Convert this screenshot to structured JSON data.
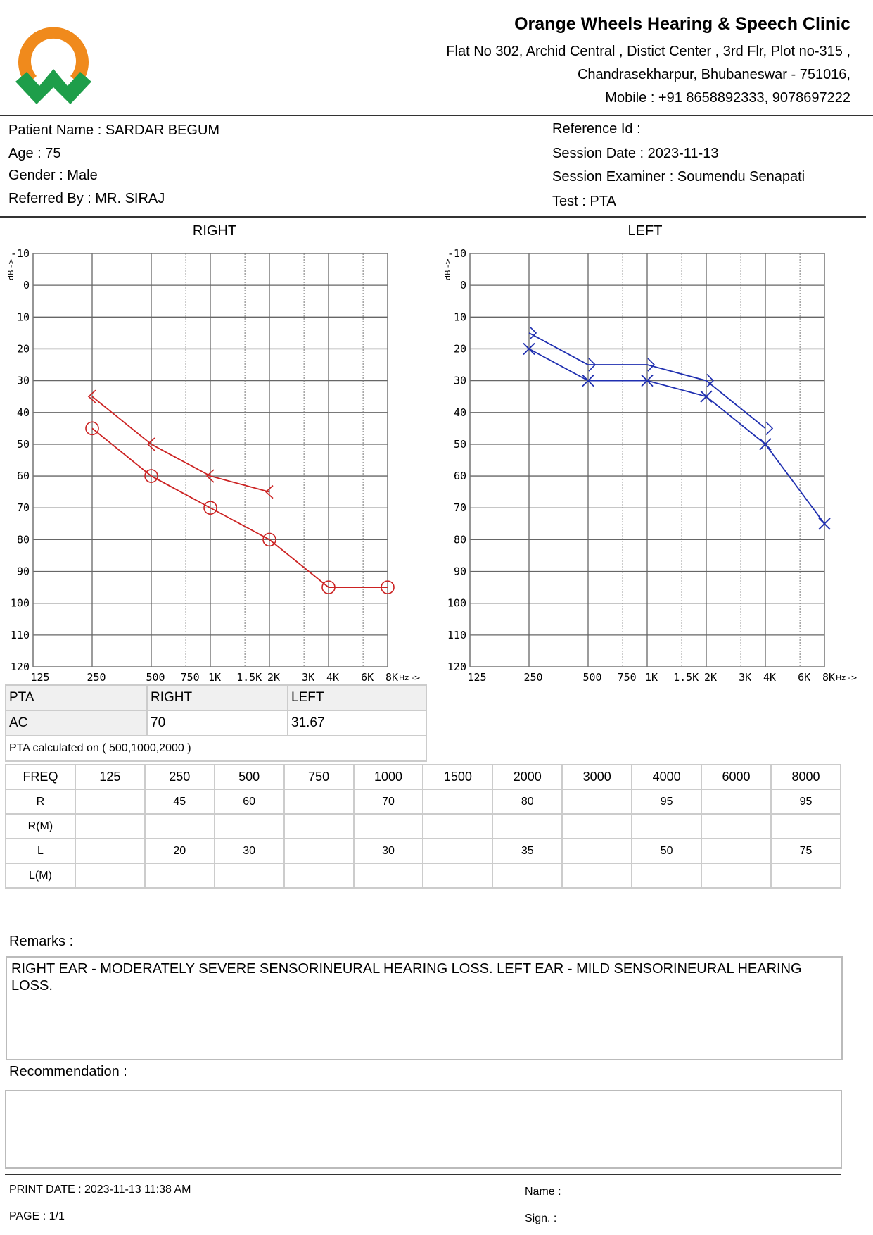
{
  "header": {
    "clinic_name": "Orange Wheels Hearing & Speech Clinic",
    "address_line1": "Flat No 302, Archid Central , Distict Center , 3rd Flr, Plot no-315 ,",
    "address_line2": "Chandrasekharpur, Bhubaneswar - 751016,",
    "mobile": "Mobile : +91 8658892333, 9078697222",
    "logo_colors": {
      "ring": "#F08A1C",
      "w": "#1E9E4A"
    }
  },
  "patient": {
    "name": "Patient Name : SARDAR BEGUM",
    "age": "Age : 75",
    "gender": "Gender : Male",
    "referred_by": "Referred By : MR. SIRAJ",
    "reference_id": "Reference Id :",
    "session_date": "Session Date : 2023-11-13",
    "session_examiner": "Session Examiner : Soumendu Senapati",
    "test": "Test : PTA"
  },
  "chart_data": [
    {
      "type": "line",
      "title": "RIGHT",
      "ylabel": "dB ->",
      "xlabel": "Hz ->",
      "ylim": [
        -10,
        120
      ],
      "y_inverted": true,
      "y_ticks": [
        -10,
        0,
        10,
        20,
        30,
        40,
        50,
        60,
        70,
        80,
        90,
        100,
        110,
        120
      ],
      "x_ticks": [
        "125",
        "250",
        "500",
        "750",
        "1K",
        "1.5K",
        "2K",
        "3K",
        "4K",
        "6K",
        "8K"
      ],
      "x_scale": "log",
      "color": "#CC2222",
      "series": [
        {
          "marker": "circle",
          "x": [
            250,
            500,
            1000,
            2000,
            4000,
            8000
          ],
          "y": [
            45,
            60,
            70,
            80,
            95,
            95
          ]
        },
        {
          "marker": "bracket-left",
          "x": [
            250,
            500,
            1000,
            2000
          ],
          "y": [
            35,
            50,
            60,
            65
          ]
        }
      ]
    },
    {
      "type": "line",
      "title": "LEFT",
      "ylabel": "dB ->",
      "xlabel": "Hz ->",
      "ylim": [
        -10,
        120
      ],
      "y_inverted": true,
      "y_ticks": [
        -10,
        0,
        10,
        20,
        30,
        40,
        50,
        60,
        70,
        80,
        90,
        100,
        110,
        120
      ],
      "x_ticks": [
        "125",
        "250",
        "500",
        "750",
        "1K",
        "1.5K",
        "2K",
        "3K",
        "4K",
        "6K",
        "8K"
      ],
      "x_scale": "log",
      "color": "#1F2FB0",
      "series": [
        {
          "marker": "cross",
          "x": [
            250,
            500,
            1000,
            2000,
            4000,
            8000
          ],
          "y": [
            20,
            30,
            30,
            35,
            50,
            75
          ]
        },
        {
          "marker": "bracket-right",
          "x": [
            250,
            500,
            1000,
            2000,
            4000
          ],
          "y": [
            15,
            25,
            25,
            30,
            45
          ]
        }
      ]
    }
  ],
  "pta": {
    "headers": [
      "PTA",
      "RIGHT",
      "LEFT"
    ],
    "row": [
      "AC",
      "70",
      "31.67"
    ],
    "note": "PTA calculated on ( 500,1000,2000 )"
  },
  "freq_table": {
    "header": [
      "FREQ",
      "125",
      "250",
      "500",
      "750",
      "1000",
      "1500",
      "2000",
      "3000",
      "4000",
      "6000",
      "8000"
    ],
    "rows": [
      [
        "R",
        "",
        "45",
        "60",
        "",
        "70",
        "",
        "80",
        "",
        "95",
        "",
        "95"
      ],
      [
        "R(M)",
        "",
        "",
        "",
        "",
        "",
        "",
        "",
        "",
        "",
        "",
        ""
      ],
      [
        "L",
        "",
        "20",
        "30",
        "",
        "30",
        "",
        "35",
        "",
        "50",
        "",
        "75"
      ],
      [
        "L(M)",
        "",
        "",
        "",
        "",
        "",
        "",
        "",
        "",
        "",
        "",
        ""
      ]
    ]
  },
  "remarks": {
    "label": "Remarks :",
    "text": "RIGHT EAR - MODERATELY SEVERE SENSORINEURAL HEARING LOSS. LEFT EAR - MILD SENSORINEURAL HEARING LOSS."
  },
  "recommendation": {
    "label": "Recommendation :",
    "text": ""
  },
  "footer": {
    "print_date": "PRINT DATE : 2023-11-13 11:38 AM",
    "page": "PAGE : 1/1",
    "name": "Name :",
    "sign": "Sign. :"
  }
}
